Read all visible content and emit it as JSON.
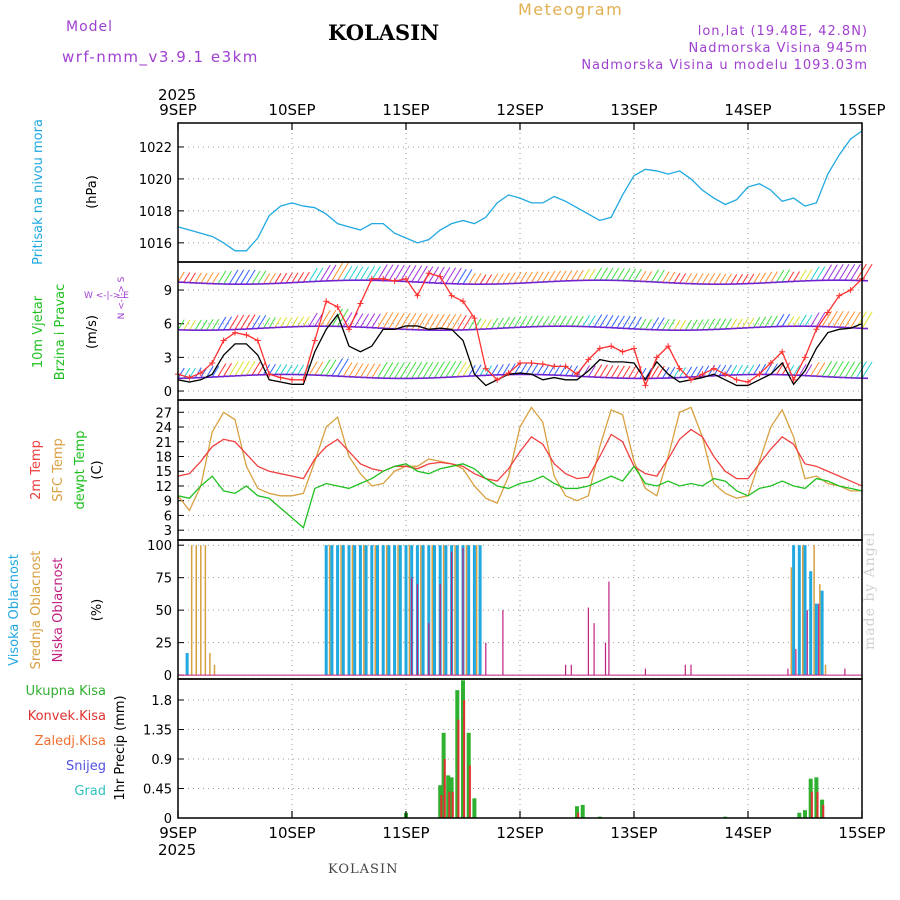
{
  "header": {
    "model_label": "Model",
    "model_name": "wrf-nmm_v3.9.1  e3km",
    "title": "KOLASIN",
    "meteogram": "Meteogram",
    "lonlat": "lon,lat (19.48E, 42.8N)",
    "altitude": "Nadmorska Visina 945m",
    "model_altitude": "Nadmorska Visina u modelu 1093.03m",
    "footer": "KOLASIN",
    "watermark": "made by Angel"
  },
  "colors": {
    "pressure": "#20a8e0",
    "wind_speed": "#000000",
    "wind_gust": "#ff3030",
    "temp2m": "#f04040",
    "sfc_temp": "#d8a040",
    "dewpoint": "#20c020",
    "high_cloud": "#20a8e0",
    "mid_cloud": "#d8a040",
    "low_cloud": "#c02080",
    "precip": "#30b030",
    "conv": "#e03030"
  },
  "chart_data": [
    {
      "type": "line",
      "name": "pressure",
      "ylabel_main": "Pritisak na nivou mora",
      "ylabel_unit": "(hPa)",
      "yticks": [
        1016,
        1018,
        1020,
        1022
      ],
      "ylim": [
        1014.8,
        1023.5
      ],
      "x_days": [
        0,
        0.1,
        0.2,
        0.3,
        0.4,
        0.5,
        0.6,
        0.7,
        0.8,
        0.9,
        1.0,
        1.1,
        1.2,
        1.3,
        1.4,
        1.5,
        1.6,
        1.7,
        1.8,
        1.9,
        2.0,
        2.1,
        2.2,
        2.3,
        2.4,
        2.5,
        2.6,
        2.7,
        2.8,
        2.9,
        3.0,
        3.1,
        3.2,
        3.3,
        3.4,
        3.5,
        3.6,
        3.7,
        3.8,
        3.9,
        4.0,
        4.1,
        4.2,
        4.3,
        4.4,
        4.5,
        4.6,
        4.7,
        4.8,
        4.9,
        5.0,
        5.1,
        5.2,
        5.3,
        5.4,
        5.5,
        5.6,
        5.7,
        5.8,
        5.9,
        6.0
      ],
      "values": [
        1017.0,
        1016.8,
        1016.6,
        1016.4,
        1016.0,
        1015.5,
        1015.5,
        1016.3,
        1017.7,
        1018.3,
        1018.5,
        1018.3,
        1018.2,
        1017.8,
        1017.2,
        1017.0,
        1016.8,
        1017.2,
        1017.2,
        1016.6,
        1016.3,
        1016.0,
        1016.2,
        1016.8,
        1017.2,
        1017.4,
        1017.2,
        1017.6,
        1018.5,
        1019.0,
        1018.8,
        1018.5,
        1018.5,
        1018.9,
        1018.6,
        1018.2,
        1017.8,
        1017.4,
        1017.6,
        1019.0,
        1020.2,
        1020.6,
        1020.5,
        1020.3,
        1020.5,
        1020.0,
        1019.3,
        1018.8,
        1018.4,
        1018.7,
        1019.5,
        1019.7,
        1019.3,
        1018.6,
        1018.8,
        1018.3,
        1018.5,
        1020.3,
        1021.5,
        1022.5,
        1023.0
      ]
    },
    {
      "type": "line",
      "name": "wind",
      "ylabel_main": "10m Vjetar",
      "ylabel_sub": "Brzina i Pravac",
      "ylabel_unit": "(m/s)",
      "compass": "W <-|-> E",
      "compass2": "N <-|-> S",
      "yticks": [
        0,
        3,
        6,
        9
      ],
      "ylim": [
        -0.8,
        11.5
      ],
      "x_days": [
        0,
        0.1,
        0.2,
        0.3,
        0.4,
        0.5,
        0.6,
        0.7,
        0.8,
        0.9,
        1.0,
        1.1,
        1.2,
        1.3,
        1.4,
        1.5,
        1.6,
        1.7,
        1.8,
        1.9,
        2.0,
        2.1,
        2.2,
        2.3,
        2.4,
        2.5,
        2.6,
        2.7,
        2.8,
        2.9,
        3.0,
        3.1,
        3.2,
        3.3,
        3.4,
        3.5,
        3.6,
        3.7,
        3.8,
        3.9,
        4.0,
        4.1,
        4.2,
        4.3,
        4.4,
        4.5,
        4.6,
        4.7,
        4.8,
        4.9,
        5.0,
        5.1,
        5.2,
        5.3,
        5.4,
        5.5,
        5.6,
        5.7,
        5.8,
        5.9,
        6.0
      ],
      "speed": [
        1.0,
        0.8,
        1.0,
        1.5,
        3.2,
        4.2,
        4.2,
        3.2,
        1.0,
        0.8,
        0.6,
        0.6,
        3.5,
        5.5,
        6.8,
        4.0,
        3.5,
        4.0,
        5.5,
        5.5,
        5.8,
        5.8,
        5.5,
        5.6,
        5.5,
        4.5,
        1.5,
        0.5,
        1.0,
        1.5,
        1.6,
        1.5,
        1.0,
        1.2,
        1.0,
        1.0,
        1.8,
        2.8,
        2.6,
        2.6,
        2.5,
        1.0,
        2.6,
        1.5,
        0.8,
        1.0,
        1.2,
        1.5,
        1.0,
        0.5,
        0.5,
        1.0,
        1.5,
        2.5,
        0.6,
        1.8,
        3.8,
        5.2,
        5.5,
        5.6,
        6.0
      ],
      "gust": [
        1.5,
        1.2,
        1.6,
        2.5,
        4.5,
        5.2,
        5.0,
        4.5,
        1.5,
        1.2,
        1.0,
        1.0,
        4.5,
        8.0,
        7.5,
        5.5,
        7.8,
        10.0,
        10.0,
        9.8,
        10.0,
        8.5,
        10.5,
        10.2,
        8.5,
        8.0,
        6.5,
        2.0,
        1.0,
        1.6,
        2.5,
        2.5,
        2.4,
        2.2,
        2.2,
        1.5,
        2.8,
        3.8,
        4.0,
        3.5,
        3.8,
        0.5,
        3.0,
        4.0,
        2.0,
        1.0,
        1.5,
        2.0,
        1.5,
        1.0,
        0.8,
        1.5,
        2.5,
        3.5,
        1.0,
        3.0,
        5.5,
        7.0,
        8.5,
        9.0,
        10.0
      ]
    },
    {
      "type": "line",
      "name": "temperature",
      "ylabel_main": "2m Temp",
      "ylabel_sub": "SFC Temp",
      "ylabel_sub2": "dewpt Temp",
      "ylabel_unit": "(C)",
      "yticks": [
        3,
        6,
        9,
        12,
        15,
        18,
        21,
        24,
        27
      ],
      "ylim": [
        1.0,
        29.5
      ],
      "x_days": [
        0,
        0.1,
        0.2,
        0.3,
        0.4,
        0.5,
        0.6,
        0.7,
        0.8,
        0.9,
        1.0,
        1.1,
        1.2,
        1.3,
        1.4,
        1.5,
        1.6,
        1.7,
        1.8,
        1.9,
        2.0,
        2.1,
        2.2,
        2.3,
        2.4,
        2.5,
        2.6,
        2.7,
        2.8,
        2.9,
        3.0,
        3.1,
        3.2,
        3.3,
        3.4,
        3.5,
        3.6,
        3.7,
        3.8,
        3.9,
        4.0,
        4.1,
        4.2,
        4.3,
        4.4,
        4.5,
        4.6,
        4.7,
        4.8,
        4.9,
        5.0,
        5.1,
        5.2,
        5.3,
        5.4,
        5.5,
        5.6,
        5.7,
        5.8,
        5.9,
        6.0
      ],
      "temp2m": [
        14.0,
        14.5,
        17.0,
        20.0,
        21.5,
        21.0,
        18.5,
        16.0,
        15.0,
        14.5,
        14.0,
        13.5,
        17.5,
        20.0,
        21.5,
        19.0,
        16.5,
        15.5,
        15.0,
        16.0,
        16.0,
        15.5,
        16.5,
        16.8,
        16.5,
        16.0,
        14.5,
        13.5,
        13.0,
        15.5,
        19.0,
        22.0,
        20.5,
        16.5,
        14.5,
        13.5,
        13.8,
        18.0,
        22.5,
        21.0,
        16.0,
        14.5,
        14.0,
        17.5,
        21.5,
        23.5,
        22.0,
        18.0,
        15.0,
        13.5,
        13.5,
        16.5,
        19.5,
        22.0,
        20.5,
        16.5,
        16.0,
        15.0,
        14.0,
        13.0,
        12.0
      ],
      "sfc": [
        10.0,
        7.0,
        12.0,
        23.0,
        27.0,
        25.5,
        16.0,
        11.5,
        10.5,
        10.0,
        10.0,
        10.5,
        17.0,
        24.0,
        26.0,
        18.0,
        14.5,
        12.0,
        12.5,
        15.0,
        16.0,
        16.0,
        17.5,
        17.0,
        16.5,
        15.5,
        12.0,
        9.5,
        8.5,
        14.0,
        24.0,
        28.0,
        25.0,
        14.0,
        10.0,
        9.0,
        10.0,
        20.0,
        27.5,
        26.5,
        17.0,
        11.5,
        10.0,
        18.0,
        27.0,
        28.0,
        22.0,
        12.5,
        10.5,
        9.5,
        10.0,
        17.0,
        24.0,
        27.5,
        22.0,
        13.5,
        14.0,
        12.5,
        12.0,
        11.0,
        11.0
      ],
      "dew": [
        10.0,
        9.5,
        12.0,
        14.0,
        11.0,
        10.5,
        12.0,
        10.0,
        9.5,
        7.5,
        5.5,
        3.5,
        11.5,
        12.5,
        12.0,
        11.5,
        12.5,
        13.5,
        15.0,
        16.0,
        16.5,
        15.0,
        14.5,
        15.5,
        16.0,
        16.5,
        15.5,
        13.5,
        12.0,
        11.5,
        12.5,
        13.0,
        14.0,
        12.5,
        11.5,
        11.5,
        12.0,
        13.0,
        14.0,
        13.0,
        16.0,
        12.5,
        12.0,
        13.0,
        12.0,
        12.5,
        12.0,
        13.5,
        13.0,
        11.0,
        10.0,
        11.5,
        12.0,
        13.0,
        12.0,
        11.5,
        13.5,
        13.0,
        12.0,
        11.5,
        11.0
      ]
    },
    {
      "type": "bar",
      "name": "clouds",
      "ylabel_main": "Visoka Oblacnost",
      "ylabel_sub": "Srednja Oblacnost",
      "ylabel_sub2": "Niska Oblacnost",
      "ylabel_unit": "(%)",
      "yticks": [
        0,
        25,
        50,
        75,
        100
      ],
      "ylim": [
        -3,
        104
      ],
      "high": [
        [
          0.08,
          17
        ],
        [
          1.3,
          100
        ],
        [
          1.35,
          100
        ],
        [
          1.4,
          100
        ],
        [
          1.45,
          100
        ],
        [
          1.5,
          100
        ],
        [
          1.55,
          100
        ],
        [
          1.6,
          100
        ],
        [
          1.65,
          100
        ],
        [
          1.7,
          100
        ],
        [
          1.75,
          100
        ],
        [
          1.8,
          100
        ],
        [
          1.85,
          100
        ],
        [
          1.9,
          100
        ],
        [
          1.95,
          100
        ],
        [
          2.0,
          100
        ],
        [
          2.05,
          100
        ],
        [
          2.1,
          100
        ],
        [
          2.15,
          100
        ],
        [
          2.2,
          100
        ],
        [
          2.25,
          100
        ],
        [
          2.3,
          100
        ],
        [
          2.35,
          100
        ],
        [
          2.4,
          100
        ],
        [
          2.45,
          100
        ],
        [
          2.5,
          100
        ],
        [
          2.55,
          100
        ],
        [
          2.6,
          100
        ],
        [
          2.65,
          100
        ],
        [
          5.4,
          100
        ],
        [
          5.45,
          100
        ],
        [
          5.5,
          100
        ],
        [
          5.55,
          80
        ],
        [
          5.6,
          55
        ],
        [
          5.65,
          65
        ]
      ],
      "mid": [
        [
          0.12,
          100
        ],
        [
          0.16,
          100
        ],
        [
          0.2,
          100
        ],
        [
          0.24,
          100
        ],
        [
          0.28,
          17
        ],
        [
          0.32,
          8
        ],
        [
          1.33,
          100
        ],
        [
          1.43,
          100
        ],
        [
          1.53,
          100
        ],
        [
          1.63,
          100
        ],
        [
          1.73,
          100
        ],
        [
          1.83,
          100
        ],
        [
          1.93,
          100
        ],
        [
          2.03,
          100
        ],
        [
          2.13,
          100
        ],
        [
          2.23,
          100
        ],
        [
          2.33,
          100
        ],
        [
          2.43,
          100
        ],
        [
          2.53,
          100
        ],
        [
          2.62,
          100
        ],
        [
          5.38,
          83
        ],
        [
          5.48,
          100
        ],
        [
          5.58,
          100
        ],
        [
          5.63,
          70
        ],
        [
          5.68,
          8
        ]
      ],
      "low": [
        [
          2.05,
          75
        ],
        [
          2.1,
          70
        ],
        [
          2.2,
          40
        ],
        [
          2.3,
          70
        ],
        [
          2.4,
          95
        ],
        [
          2.5,
          98
        ],
        [
          2.7,
          25
        ],
        [
          2.85,
          50
        ],
        [
          3.4,
          8
        ],
        [
          3.45,
          8
        ],
        [
          3.6,
          52
        ],
        [
          3.65,
          40
        ],
        [
          3.75,
          25
        ],
        [
          3.78,
          72
        ],
        [
          4.1,
          5
        ],
        [
          4.45,
          8
        ],
        [
          4.5,
          8
        ],
        [
          5.35,
          5
        ],
        [
          5.42,
          20
        ],
        [
          5.52,
          50
        ],
        [
          5.62,
          55
        ],
        [
          5.85,
          5
        ]
      ]
    },
    {
      "type": "bar",
      "name": "precipitation",
      "ylabel_main": "1hr Precip (mm)",
      "legend": [
        "Ukupna Kisa",
        "Konvek.Kisa",
        "Zaledj.Kisa",
        "Snijeg",
        "Grad"
      ],
      "legend_colors": [
        "#30b030",
        "#e03030",
        "#f07030",
        "#5050e0",
        "#30c0c0"
      ],
      "yticks": [
        "0",
        "0.45",
        "0.9",
        "1.35",
        "1.8"
      ],
      "ylim": [
        0,
        2.12
      ],
      "total": [
        [
          2.0,
          0.08
        ],
        [
          2.3,
          0.5
        ],
        [
          2.33,
          1.3
        ],
        [
          2.37,
          0.65
        ],
        [
          2.4,
          0.62
        ],
        [
          2.45,
          1.95
        ],
        [
          2.5,
          2.1
        ],
        [
          2.55,
          1.3
        ],
        [
          2.6,
          0.3
        ],
        [
          3.5,
          0.18
        ],
        [
          3.55,
          0.2
        ],
        [
          3.7,
          0.02
        ],
        [
          4.8,
          0.02
        ],
        [
          5.45,
          0.08
        ],
        [
          5.5,
          0.12
        ],
        [
          5.55,
          0.6
        ],
        [
          5.6,
          0.62
        ],
        [
          5.65,
          0.28
        ]
      ],
      "conv": [
        [
          2.31,
          0.35
        ],
        [
          2.34,
          0.9
        ],
        [
          2.38,
          0.4
        ],
        [
          2.41,
          0.4
        ],
        [
          2.46,
          1.5
        ],
        [
          2.51,
          1.8
        ],
        [
          2.56,
          0.8
        ],
        [
          3.51,
          0.08
        ],
        [
          5.56,
          0.4
        ],
        [
          5.61,
          0.4
        ],
        [
          5.66,
          0.2
        ]
      ]
    }
  ],
  "xaxis": {
    "top_year": "2025",
    "bottom_year": "2025",
    "labels": [
      "9SEP",
      "10SEP",
      "11SEP",
      "12SEP",
      "13SEP",
      "14SEP",
      "15SEP"
    ]
  }
}
